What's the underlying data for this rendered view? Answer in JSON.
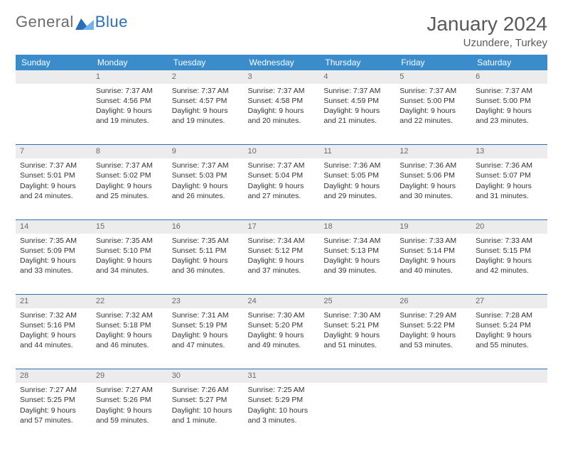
{
  "brand": {
    "name_part1": "General",
    "name_part2": "Blue"
  },
  "title": "January 2024",
  "location": "Uzundere, Turkey",
  "colors": {
    "header_bg": "#3b8ccb",
    "daynum_bg": "#ececec",
    "rule": "#2a6db8",
    "text": "#333333",
    "muted": "#6a6a6a",
    "brand_gray": "#6b6b6b",
    "brand_blue": "#2a6db8"
  },
  "weekdays": [
    "Sunday",
    "Monday",
    "Tuesday",
    "Wednesday",
    "Thursday",
    "Friday",
    "Saturday"
  ],
  "start_offset": 1,
  "days": [
    {
      "n": 1,
      "sr": "7:37 AM",
      "ss": "4:56 PM",
      "dl": "9 hours and 19 minutes."
    },
    {
      "n": 2,
      "sr": "7:37 AM",
      "ss": "4:57 PM",
      "dl": "9 hours and 19 minutes."
    },
    {
      "n": 3,
      "sr": "7:37 AM",
      "ss": "4:58 PM",
      "dl": "9 hours and 20 minutes."
    },
    {
      "n": 4,
      "sr": "7:37 AM",
      "ss": "4:59 PM",
      "dl": "9 hours and 21 minutes."
    },
    {
      "n": 5,
      "sr": "7:37 AM",
      "ss": "5:00 PM",
      "dl": "9 hours and 22 minutes."
    },
    {
      "n": 6,
      "sr": "7:37 AM",
      "ss": "5:00 PM",
      "dl": "9 hours and 23 minutes."
    },
    {
      "n": 7,
      "sr": "7:37 AM",
      "ss": "5:01 PM",
      "dl": "9 hours and 24 minutes."
    },
    {
      "n": 8,
      "sr": "7:37 AM",
      "ss": "5:02 PM",
      "dl": "9 hours and 25 minutes."
    },
    {
      "n": 9,
      "sr": "7:37 AM",
      "ss": "5:03 PM",
      "dl": "9 hours and 26 minutes."
    },
    {
      "n": 10,
      "sr": "7:37 AM",
      "ss": "5:04 PM",
      "dl": "9 hours and 27 minutes."
    },
    {
      "n": 11,
      "sr": "7:36 AM",
      "ss": "5:05 PM",
      "dl": "9 hours and 29 minutes."
    },
    {
      "n": 12,
      "sr": "7:36 AM",
      "ss": "5:06 PM",
      "dl": "9 hours and 30 minutes."
    },
    {
      "n": 13,
      "sr": "7:36 AM",
      "ss": "5:07 PM",
      "dl": "9 hours and 31 minutes."
    },
    {
      "n": 14,
      "sr": "7:35 AM",
      "ss": "5:09 PM",
      "dl": "9 hours and 33 minutes."
    },
    {
      "n": 15,
      "sr": "7:35 AM",
      "ss": "5:10 PM",
      "dl": "9 hours and 34 minutes."
    },
    {
      "n": 16,
      "sr": "7:35 AM",
      "ss": "5:11 PM",
      "dl": "9 hours and 36 minutes."
    },
    {
      "n": 17,
      "sr": "7:34 AM",
      "ss": "5:12 PM",
      "dl": "9 hours and 37 minutes."
    },
    {
      "n": 18,
      "sr": "7:34 AM",
      "ss": "5:13 PM",
      "dl": "9 hours and 39 minutes."
    },
    {
      "n": 19,
      "sr": "7:33 AM",
      "ss": "5:14 PM",
      "dl": "9 hours and 40 minutes."
    },
    {
      "n": 20,
      "sr": "7:33 AM",
      "ss": "5:15 PM",
      "dl": "9 hours and 42 minutes."
    },
    {
      "n": 21,
      "sr": "7:32 AM",
      "ss": "5:16 PM",
      "dl": "9 hours and 44 minutes."
    },
    {
      "n": 22,
      "sr": "7:32 AM",
      "ss": "5:18 PM",
      "dl": "9 hours and 46 minutes."
    },
    {
      "n": 23,
      "sr": "7:31 AM",
      "ss": "5:19 PM",
      "dl": "9 hours and 47 minutes."
    },
    {
      "n": 24,
      "sr": "7:30 AM",
      "ss": "5:20 PM",
      "dl": "9 hours and 49 minutes."
    },
    {
      "n": 25,
      "sr": "7:30 AM",
      "ss": "5:21 PM",
      "dl": "9 hours and 51 minutes."
    },
    {
      "n": 26,
      "sr": "7:29 AM",
      "ss": "5:22 PM",
      "dl": "9 hours and 53 minutes."
    },
    {
      "n": 27,
      "sr": "7:28 AM",
      "ss": "5:24 PM",
      "dl": "9 hours and 55 minutes."
    },
    {
      "n": 28,
      "sr": "7:27 AM",
      "ss": "5:25 PM",
      "dl": "9 hours and 57 minutes."
    },
    {
      "n": 29,
      "sr": "7:27 AM",
      "ss": "5:26 PM",
      "dl": "9 hours and 59 minutes."
    },
    {
      "n": 30,
      "sr": "7:26 AM",
      "ss": "5:27 PM",
      "dl": "10 hours and 1 minute."
    },
    {
      "n": 31,
      "sr": "7:25 AM",
      "ss": "5:29 PM",
      "dl": "10 hours and 3 minutes."
    }
  ],
  "labels": {
    "sunrise": "Sunrise:",
    "sunset": "Sunset:",
    "daylight": "Daylight:"
  }
}
